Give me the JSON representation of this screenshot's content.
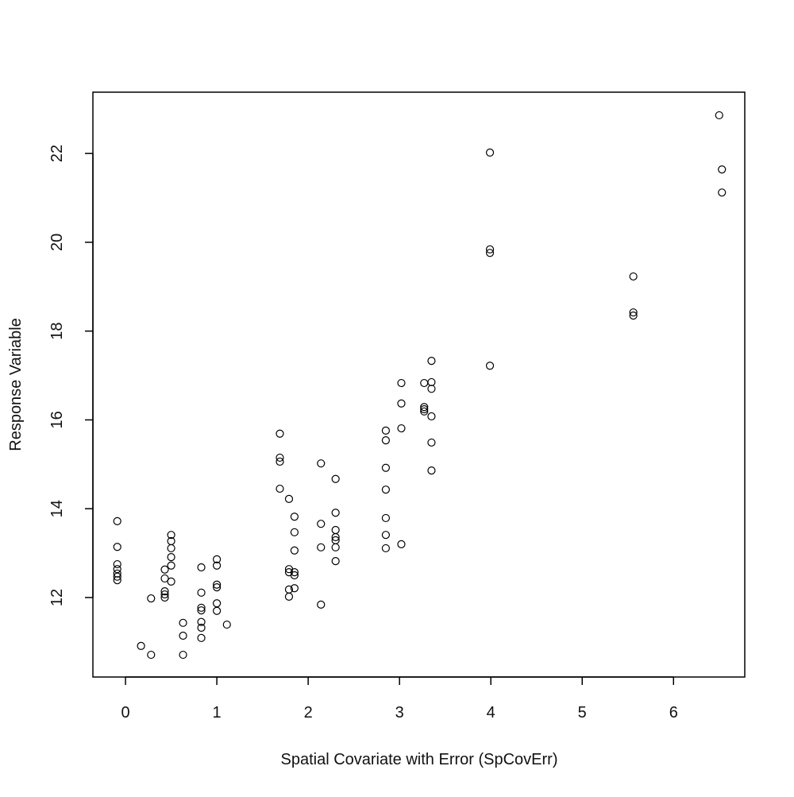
{
  "chart_data": {
    "type": "scatter",
    "xlabel": "Spatial Covariate with Error (SpCovErr)",
    "ylabel": "Response Variable",
    "x": [
      -0.09,
      -0.09,
      -0.09,
      -0.09,
      -0.09,
      -0.09,
      -0.09,
      0.17,
      0.28,
      0.28,
      0.43,
      0.43,
      0.43,
      0.43,
      0.43,
      0.5,
      0.5,
      0.5,
      0.5,
      0.5,
      0.5,
      0.63,
      0.63,
      0.63,
      0.83,
      0.83,
      0.83,
      0.83,
      0.83,
      0.83,
      0.83,
      1.0,
      1.0,
      1.0,
      1.0,
      1.0,
      1.0,
      1.11,
      1.69,
      1.69,
      1.69,
      1.69,
      1.79,
      1.79,
      1.79,
      1.79,
      1.79,
      1.85,
      1.85,
      1.85,
      1.85,
      1.85,
      1.85,
      2.14,
      2.14,
      2.14,
      2.14,
      2.3,
      2.3,
      2.3,
      2.3,
      2.3,
      2.3,
      2.3,
      2.85,
      2.85,
      2.85,
      2.85,
      2.85,
      2.85,
      2.85,
      3.02,
      3.02,
      3.02,
      3.02,
      3.27,
      3.27,
      3.27,
      3.27,
      3.35,
      3.35,
      3.35,
      3.35,
      3.35,
      3.35,
      3.99,
      3.99,
      3.99,
      3.99,
      5.56,
      5.56,
      5.56,
      6.5,
      6.53,
      6.53
    ],
    "values": [
      13.72,
      13.14,
      12.75,
      12.64,
      12.54,
      12.47,
      12.39,
      10.91,
      10.71,
      11.98,
      12.63,
      12.43,
      12.14,
      12.07,
      12.0,
      13.41,
      13.27,
      13.11,
      12.91,
      12.72,
      12.36,
      11.43,
      11.14,
      10.71,
      12.68,
      12.11,
      11.77,
      11.71,
      11.45,
      11.32,
      11.09,
      12.86,
      12.72,
      12.29,
      12.23,
      11.87,
      11.7,
      11.39,
      15.69,
      15.15,
      15.06,
      14.45,
      14.22,
      12.64,
      12.57,
      12.18,
      12.02,
      13.82,
      13.47,
      13.06,
      12.57,
      12.5,
      12.21,
      15.02,
      13.66,
      13.13,
      11.84,
      14.67,
      13.91,
      13.52,
      13.36,
      13.29,
      13.13,
      12.82,
      15.76,
      15.54,
      14.92,
      14.43,
      13.79,
      13.41,
      13.11,
      16.83,
      16.37,
      15.81,
      13.2,
      16.83,
      16.29,
      16.24,
      16.19,
      17.33,
      16.85,
      16.7,
      16.08,
      15.49,
      14.86,
      22.02,
      19.84,
      19.76,
      17.22,
      19.23,
      18.42,
      18.35,
      22.86,
      21.64,
      21.12
    ],
    "color": "#000000",
    "xlim": [
      -0.357,
      6.78
    ],
    "xticks": [
      0,
      1,
      2,
      3,
      4,
      5,
      6
    ],
    "ylim": [
      10.21,
      23.38
    ],
    "yticks": [
      12,
      14,
      16,
      18,
      20,
      22
    ]
  }
}
